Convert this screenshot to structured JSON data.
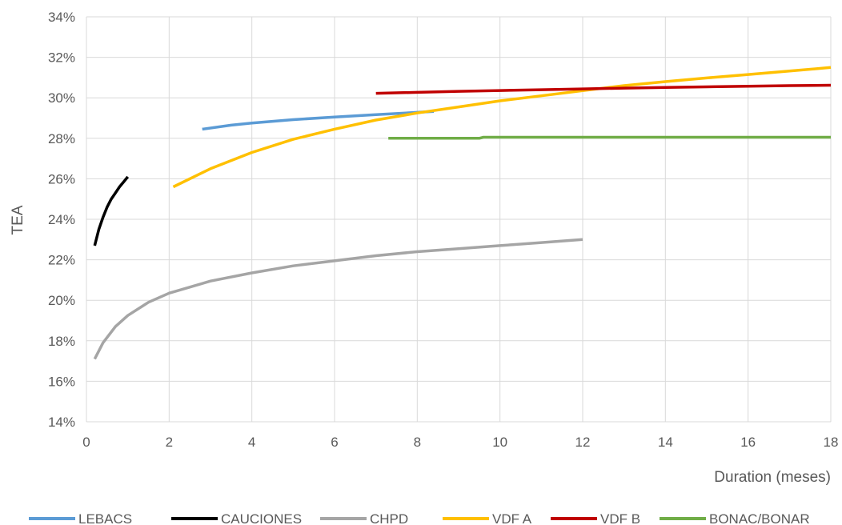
{
  "chart_data": {
    "type": "line",
    "xlabel": "Duration (meses)",
    "ylabel": "TEA",
    "xlim": [
      0,
      18
    ],
    "ylim": [
      14,
      34
    ],
    "xticks": [
      0,
      2,
      4,
      6,
      8,
      10,
      12,
      14,
      16,
      18
    ],
    "yticks": [
      14,
      16,
      18,
      20,
      22,
      24,
      26,
      28,
      30,
      32,
      34
    ],
    "ytick_labels": [
      "14%",
      "16%",
      "18%",
      "20%",
      "22%",
      "24%",
      "26%",
      "28%",
      "30%",
      "32%",
      "34%"
    ],
    "grid": true,
    "legend_position": "bottom",
    "series": [
      {
        "name": "LEBACS",
        "color": "#5B9BD5",
        "x": [
          2.8,
          3.5,
          4,
          5,
          6,
          7,
          8,
          8.4
        ],
        "y": [
          28.45,
          28.65,
          28.75,
          28.92,
          29.05,
          29.17,
          29.28,
          29.33
        ]
      },
      {
        "name": "CAUCIONES",
        "color": "#000000",
        "x": [
          0.2,
          0.3,
          0.4,
          0.5,
          0.6,
          0.7,
          0.8,
          0.9,
          1.0
        ],
        "y": [
          22.7,
          23.5,
          24.1,
          24.6,
          25.0,
          25.3,
          25.6,
          25.85,
          26.1
        ]
      },
      {
        "name": "CHPD",
        "color": "#A5A5A5",
        "x": [
          0.2,
          0.4,
          0.7,
          1,
          1.5,
          2,
          3,
          4,
          5,
          6,
          7,
          8,
          9,
          10,
          11,
          12
        ],
        "y": [
          17.1,
          17.9,
          18.7,
          19.25,
          19.9,
          20.35,
          20.95,
          21.35,
          21.7,
          21.95,
          22.2,
          22.4,
          22.55,
          22.7,
          22.85,
          23.0
        ]
      },
      {
        "name": "VDF A",
        "color": "#FFC000",
        "x": [
          2.1,
          3,
          4,
          5,
          6,
          7,
          8,
          9,
          10,
          11,
          12,
          13,
          14,
          15,
          16,
          17,
          18
        ],
        "y": [
          25.6,
          26.5,
          27.3,
          27.95,
          28.45,
          28.9,
          29.25,
          29.55,
          29.85,
          30.1,
          30.35,
          30.6,
          30.8,
          30.98,
          31.15,
          31.32,
          31.5
        ]
      },
      {
        "name": "VDF B",
        "color": "#C00000",
        "x": [
          7.0,
          8,
          9,
          10,
          11,
          12,
          13,
          14,
          15,
          16,
          17,
          18
        ],
        "y": [
          30.22,
          30.27,
          30.32,
          30.36,
          30.4,
          30.44,
          30.48,
          30.51,
          30.54,
          30.57,
          30.6,
          30.62
        ]
      },
      {
        "name": "BONAC/BONAR",
        "color": "#70AD47",
        "x": [
          7.3,
          9.5,
          9.6,
          12,
          15,
          18
        ],
        "y": [
          28.0,
          28.0,
          28.05,
          28.05,
          28.05,
          28.05
        ]
      }
    ]
  }
}
